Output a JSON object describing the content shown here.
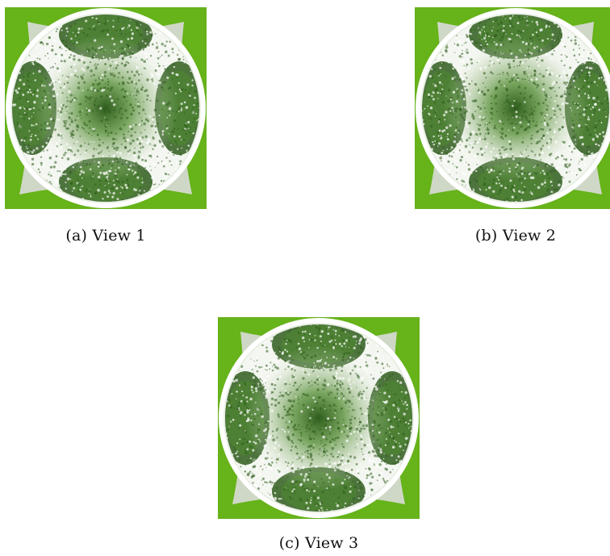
{
  "figure": {
    "panels": [
      {
        "id": "a",
        "caption": "(a) View 1",
        "image_description": "top-down circular canopy render"
      },
      {
        "id": "b",
        "caption": "(b) View 2",
        "image_description": "top-down circular canopy render"
      },
      {
        "id": "c",
        "caption": "(c) View 3",
        "image_description": "top-down circular canopy render"
      }
    ],
    "colors": {
      "ground_green": "#66b31a",
      "pale_gray_green": "#cfd8c6",
      "canopy_dark": "#2f5d1d",
      "canopy_mid": "#4f8a2e",
      "speckle_white": "#ffffff"
    }
  }
}
